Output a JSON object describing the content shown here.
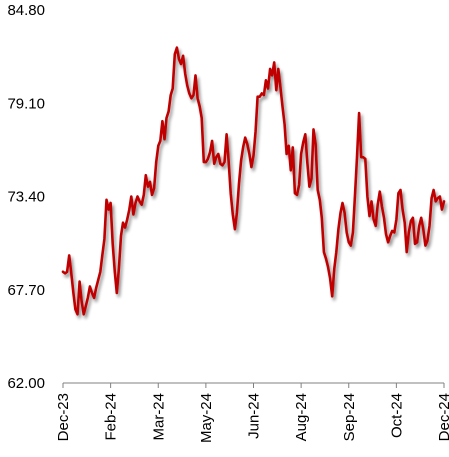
{
  "chart_data": {
    "type": "line",
    "title": "",
    "xlabel": "",
    "ylabel": "",
    "ylim": [
      62.0,
      84.8
    ],
    "y_ticks": [
      "62.00",
      "67.70",
      "73.40",
      "79.10",
      "84.80"
    ],
    "x_ticks": [
      "Dec-23",
      "Feb-24",
      "Mar-24",
      "May-24",
      "Jun-24",
      "Aug-24",
      "Sep-24",
      "Oct-24",
      "Dec-24"
    ],
    "grid": false,
    "legend": "none",
    "series": [
      {
        "color": "#C00000",
        "shadow": true,
        "values": [
          68.8,
          68.7,
          68.8,
          69.8,
          68.7,
          67.5,
          66.5,
          66.2,
          68.2,
          67.0,
          66.2,
          66.7,
          67.2,
          67.9,
          67.5,
          67.2,
          67.8,
          68.3,
          68.8,
          69.8,
          70.8,
          73.2,
          72.6,
          73.0,
          70.5,
          68.8,
          67.5,
          69.0,
          71.0,
          71.8,
          71.5,
          72.0,
          72.6,
          73.4,
          72.3,
          73.0,
          73.4,
          73.1,
          72.9,
          73.5,
          74.7,
          74.0,
          74.3,
          73.5,
          73.9,
          75.5,
          76.5,
          76.8,
          78.0,
          76.9,
          78.2,
          78.6,
          79.6,
          80.0,
          82.1,
          82.5,
          81.8,
          81.5,
          82.0,
          80.9,
          80.2,
          79.7,
          79.4,
          79.6,
          80.8,
          79.4,
          78.9,
          78.2,
          75.5,
          75.5,
          75.7,
          76.1,
          76.8,
          75.4,
          75.8,
          76.0,
          75.4,
          75.3,
          75.5,
          77.2,
          75.5,
          73.6,
          72.3,
          71.4,
          72.4,
          74.2,
          75.6,
          76.4,
          77.0,
          76.6,
          76.0,
          75.2,
          75.9,
          77.4,
          79.5,
          79.5,
          79.7,
          79.6,
          80.5,
          80.0,
          81.2,
          80.8,
          81.6,
          79.9,
          81.2,
          80.1,
          78.9,
          77.8,
          76.0,
          76.5,
          75.0,
          76.4,
          73.6,
          73.5,
          74.1,
          76.0,
          76.7,
          77.2,
          75.5,
          74.0,
          74.5,
          77.5,
          76.6,
          73.8,
          73.2,
          72.1,
          70.0,
          69.6,
          69.1,
          68.4,
          67.3,
          69.0,
          70.0,
          71.4,
          72.4,
          73.0,
          72.4,
          71.2,
          70.6,
          70.4,
          71.2,
          73.5,
          75.8,
          78.5,
          75.8,
          75.8,
          75.7,
          73.4,
          72.2,
          73.1,
          72.0,
          71.6,
          72.9,
          73.7,
          72.8,
          72.1,
          71.1,
          70.6,
          71.0,
          71.3,
          71.2,
          72.0,
          73.6,
          73.8,
          72.6,
          71.8,
          70.0,
          71.2,
          71.9,
          72.1,
          70.5,
          70.6,
          71.6,
          72.1,
          71.4,
          70.4,
          70.7,
          71.6,
          73.3,
          73.8,
          73.1,
          73.3,
          73.4,
          72.6,
          73.1
        ]
      }
    ]
  }
}
